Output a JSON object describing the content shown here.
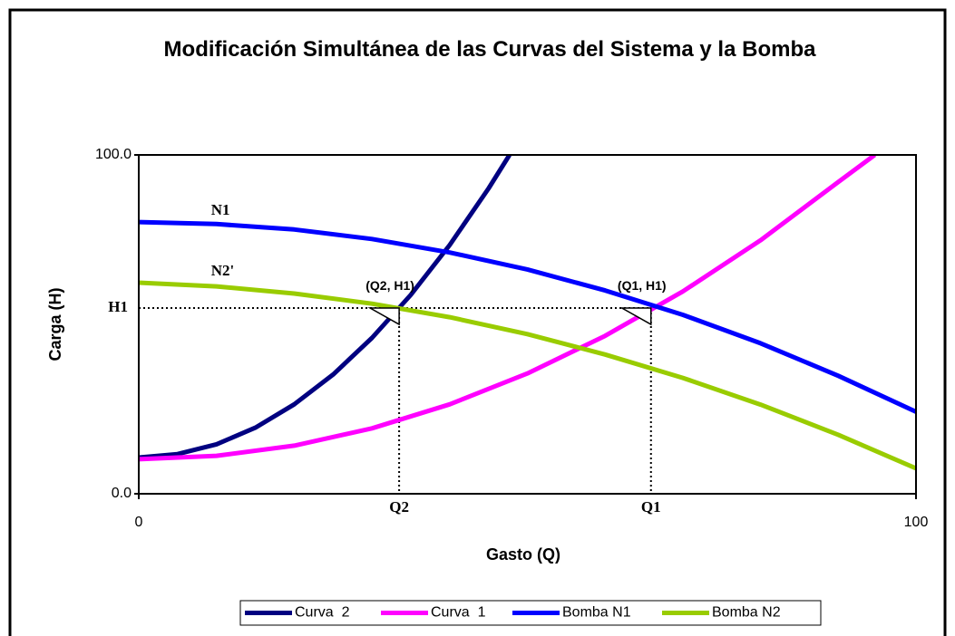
{
  "chart_data": {
    "type": "line",
    "title": "Modificación Simultánea de las Curvas del Sistema y la Bomba",
    "x_label": "Gasto (Q)",
    "y_label": "Carga (H)",
    "xlim": [
      0,
      100
    ],
    "ylim": [
      0,
      100
    ],
    "xticks": [
      0,
      100
    ],
    "yticks": [
      {
        "value": 0,
        "label": "0.0"
      },
      {
        "value": 100,
        "label": "100.0"
      }
    ],
    "legend": "bottom",
    "series": [
      {
        "name": "Curva  2",
        "color": "#000080",
        "x": [
          0,
          5,
          10,
          15,
          20,
          25,
          30,
          35,
          40,
          45,
          47.7
        ],
        "values": [
          10.7,
          11.7,
          14.6,
          19.5,
          26.4,
          35.2,
          46.0,
          58.7,
          73.4,
          90.1,
          100
        ]
      },
      {
        "name": "Curva  1",
        "color": "#ff00ff",
        "x": [
          0,
          10,
          20,
          30,
          40,
          50,
          60,
          70,
          80,
          90,
          94.7
        ],
        "values": [
          10.2,
          11.2,
          14.2,
          19.3,
          26.4,
          35.5,
          46.6,
          59.7,
          74.8,
          92.0,
          100
        ]
      },
      {
        "name": "Bomba N1",
        "color": "#0000ff",
        "label": "N1",
        "x": [
          0,
          10,
          20,
          30,
          40,
          50,
          60,
          70,
          80,
          90,
          100
        ],
        "values": [
          80.2,
          79.6,
          78.0,
          75.2,
          71.2,
          66.2,
          60.0,
          52.8,
          44.4,
          34.8,
          24.2
        ]
      },
      {
        "name": "Bomba N2",
        "color": "#99cc00",
        "label": "N2'",
        "x": [
          0,
          10,
          20,
          30,
          40,
          50,
          60,
          70,
          80,
          90,
          100
        ],
        "values": [
          62.3,
          61.2,
          59.1,
          56.1,
          52.1,
          47.1,
          41.1,
          34.2,
          26.3,
          17.4,
          7.5
        ]
      }
    ],
    "x_refs": [
      {
        "label": "Q2",
        "value": 33.5
      },
      {
        "label": "Q1",
        "value": 65.9
      }
    ],
    "y_refs": [
      {
        "label": "H1",
        "value": 54.8
      }
    ],
    "points": [
      {
        "label": "(Q2, H1)",
        "x": 33.5,
        "y": 54.8
      },
      {
        "label": "(Q1, H1)",
        "x": 65.9,
        "y": 54.8
      }
    ]
  }
}
